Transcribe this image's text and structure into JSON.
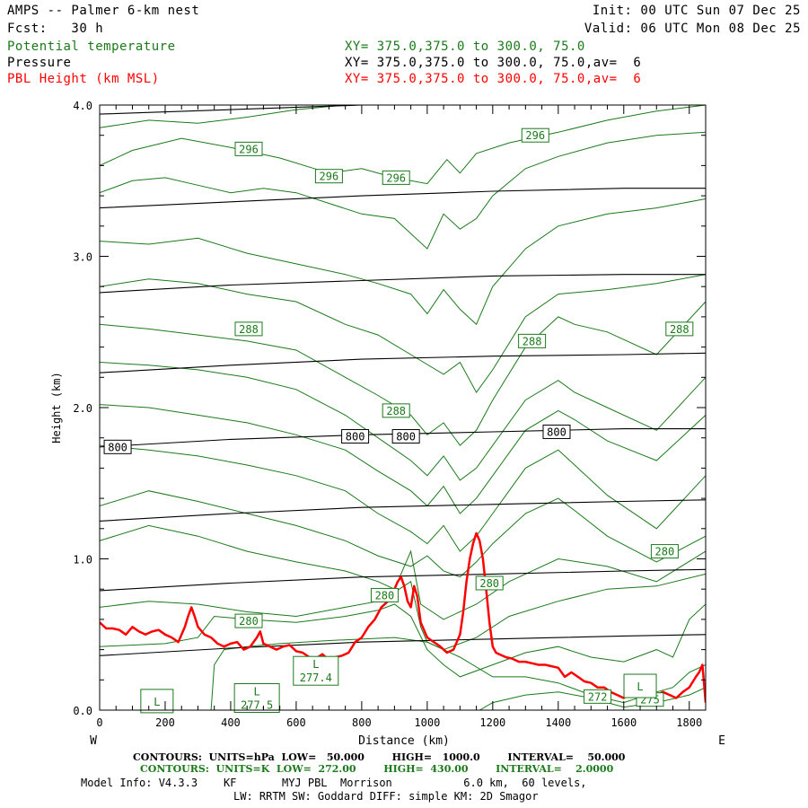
{
  "header": {
    "title": "AMPS -- Palmer 6-km nest",
    "fcst": "Fcst:   30 h",
    "init": "Init: 00 UTC Sun 07 Dec 25",
    "valid": "Valid: 06 UTC Mon 08 Dec 25",
    "fields": [
      {
        "name": "Potential temperature",
        "xy": "XY= 375.0,375.0 to 300.0, 75.0",
        "color": "#1a7a1a"
      },
      {
        "name": "Pressure",
        "xy": "XY= 375.0,375.0 to 300.0, 75.0,av=  6",
        "color": "#000000"
      },
      {
        "name": "PBL Height (km MSL)",
        "xy": "XY= 375.0,375.0 to 300.0, 75.0,av=  6",
        "color": "#ff0000"
      }
    ]
  },
  "axis_labels": {
    "west": "W",
    "east": "E"
  },
  "footer": {
    "pressure_line": "CONTOURS:  UNITS=hPa  LOW=   50.000        HIGH=   1000.0        INTERVAL=    50.000",
    "theta_line": "CONTOURS:  UNITS=K  LOW=  272.00        HIGH=  430.00        INTERVAL=    2.0000",
    "model_line1": "Model Info: V4.3.3    KF       MYJ PBL  Morrison           6.0 km,  60 levels,",
    "model_line2": "LW: RRTM SW: Goddard DIFF: simple KM: 2D Smagor"
  },
  "chart_data": {
    "type": "line",
    "xlabel": "Distance (km)",
    "ylabel": "Height (km)",
    "xlim": [
      0,
      1850
    ],
    "ylim": [
      0,
      4
    ],
    "x_ticks": [
      0,
      200,
      400,
      600,
      800,
      1000,
      1200,
      1400,
      1600,
      1800
    ],
    "y_ticks": [
      0.0,
      1.0,
      2.0,
      3.0,
      4.0
    ],
    "x_tick_labels": [
      "0",
      "200",
      "400",
      "600",
      "800",
      "1000",
      "1200",
      "1400",
      "1600",
      "1800"
    ],
    "y_tick_labels": [
      "0.0",
      "1.0",
      "2.0",
      "3.0",
      "4.0"
    ],
    "colors": {
      "pressure": "#000000",
      "theta": "#1a7a1a",
      "pbl": "#ff0000"
    },
    "pressure_contours": [
      {
        "x": [
          0,
          400,
          800,
          1200,
          1600,
          1850
        ],
        "y": [
          0.36,
          0.41,
          0.45,
          0.47,
          0.49,
          0.5
        ]
      },
      {
        "x": [
          0,
          400,
          800,
          1200,
          1600,
          1850
        ],
        "y": [
          0.79,
          0.84,
          0.88,
          0.9,
          0.92,
          0.93
        ]
      },
      {
        "x": [
          0,
          400,
          800,
          1200,
          1600,
          1850
        ],
        "y": [
          1.25,
          1.3,
          1.34,
          1.36,
          1.38,
          1.39
        ]
      },
      {
        "x": [
          0,
          400,
          800,
          1200,
          1600,
          1850
        ],
        "y": [
          1.74,
          1.79,
          1.82,
          1.84,
          1.86,
          1.86
        ]
      },
      {
        "x": [
          0,
          400,
          800,
          1200,
          1600,
          1850
        ],
        "y": [
          2.23,
          2.28,
          2.32,
          2.34,
          2.35,
          2.36
        ]
      },
      {
        "x": [
          0,
          400,
          800,
          1200,
          1600,
          1850
        ],
        "y": [
          2.76,
          2.81,
          2.84,
          2.87,
          2.88,
          2.88
        ]
      },
      {
        "x": [
          0,
          400,
          800,
          1200,
          1600,
          1850
        ],
        "y": [
          3.32,
          3.36,
          3.4,
          3.43,
          3.45,
          3.45
        ]
      },
      {
        "x": [
          0,
          400,
          800,
          1200,
          1600,
          1850
        ],
        "y": [
          3.94,
          3.97,
          4.0,
          4.02,
          4.03,
          4.03
        ]
      }
    ],
    "pressure_labels": [
      {
        "text": "800",
        "x": 55,
        "y": 1.74
      },
      {
        "text": "800",
        "x": 780,
        "y": 1.81
      },
      {
        "text": "800",
        "x": 935,
        "y": 1.81
      },
      {
        "text": "800",
        "x": 1395,
        "y": 1.84
      }
    ],
    "theta_contours": [
      {
        "x": [
          0,
          150,
          300,
          450,
          600,
          750,
          850,
          950,
          1050,
          1150,
          1250,
          1400,
          1550,
          1700,
          1850
        ],
        "y": [
          3.85,
          3.9,
          3.88,
          3.92,
          3.97,
          4.0,
          4.0,
          4.0,
          4.0,
          4.0,
          4.0,
          4.0,
          4.0,
          4.0,
          4.0
        ]
      },
      {
        "x": [
          0,
          100,
          250,
          400,
          550,
          700,
          800,
          900,
          1000,
          1060,
          1100,
          1150,
          1250,
          1400,
          1550,
          1700,
          1850
        ],
        "y": [
          3.6,
          3.7,
          3.78,
          3.72,
          3.65,
          3.55,
          3.58,
          3.52,
          3.48,
          3.64,
          3.55,
          3.68,
          3.75,
          3.82,
          3.9,
          3.96,
          4.0
        ]
      },
      {
        "x": [
          0,
          100,
          200,
          300,
          400,
          500,
          600,
          700,
          800,
          900,
          1000,
          1050,
          1100,
          1150,
          1200,
          1300,
          1400,
          1550,
          1700,
          1850
        ],
        "y": [
          3.42,
          3.5,
          3.52,
          3.47,
          3.42,
          3.45,
          3.42,
          3.35,
          3.28,
          3.25,
          3.05,
          3.28,
          3.18,
          3.25,
          3.4,
          3.58,
          3.66,
          3.75,
          3.8,
          3.82
        ]
      },
      {
        "x": [
          0,
          150,
          300,
          450,
          600,
          750,
          850,
          950,
          1000,
          1050,
          1100,
          1150,
          1200,
          1300,
          1400,
          1550,
          1700,
          1850
        ],
        "y": [
          3.1,
          3.08,
          3.12,
          3.02,
          2.95,
          2.88,
          2.82,
          2.75,
          2.62,
          2.78,
          2.65,
          2.55,
          2.8,
          3.05,
          3.2,
          3.28,
          3.32,
          3.38
        ]
      },
      {
        "x": [
          0,
          150,
          300,
          450,
          600,
          750,
          850,
          950,
          1050,
          1100,
          1150,
          1200,
          1300,
          1400,
          1550,
          1700,
          1850
        ],
        "y": [
          2.8,
          2.85,
          2.82,
          2.75,
          2.7,
          2.55,
          2.48,
          2.35,
          2.22,
          2.3,
          2.1,
          2.25,
          2.6,
          2.75,
          2.78,
          2.82,
          2.88
        ]
      },
      {
        "x": [
          0,
          150,
          300,
          450,
          600,
          750,
          850,
          950,
          1000,
          1050,
          1100,
          1150,
          1200,
          1300,
          1400,
          1450,
          1550,
          1700,
          1850
        ],
        "y": [
          2.55,
          2.52,
          2.48,
          2.44,
          2.38,
          2.2,
          2.08,
          1.95,
          1.82,
          1.9,
          1.75,
          1.85,
          2.05,
          2.4,
          2.6,
          2.55,
          2.5,
          2.35,
          2.7
        ]
      },
      {
        "x": [
          0,
          150,
          300,
          450,
          600,
          750,
          850,
          950,
          1000,
          1050,
          1100,
          1150,
          1200,
          1300,
          1400,
          1450,
          1550,
          1700,
          1850
        ],
        "y": [
          2.3,
          2.28,
          2.25,
          2.2,
          2.12,
          1.95,
          1.8,
          1.65,
          1.55,
          1.68,
          1.52,
          1.6,
          1.75,
          2.05,
          2.18,
          2.1,
          2.0,
          1.85,
          2.2
        ]
      },
      {
        "x": [
          0,
          150,
          300,
          450,
          600,
          750,
          850,
          950,
          1000,
          1050,
          1100,
          1150,
          1200,
          1300,
          1400,
          1450,
          1550,
          1700,
          1850
        ],
        "y": [
          2.02,
          2.0,
          1.95,
          1.9,
          1.82,
          1.72,
          1.58,
          1.45,
          1.35,
          1.48,
          1.3,
          1.4,
          1.55,
          1.85,
          1.98,
          1.92,
          1.78,
          1.65,
          1.95
        ]
      },
      {
        "x": [
          0,
          150,
          300,
          450,
          600,
          750,
          850,
          950,
          1000,
          1050,
          1100,
          1150,
          1200,
          1300,
          1400,
          1450,
          1550,
          1700,
          1850
        ],
        "y": [
          1.75,
          1.72,
          1.68,
          1.62,
          1.55,
          1.45,
          1.3,
          1.18,
          1.1,
          1.22,
          1.05,
          1.15,
          1.3,
          1.6,
          1.72,
          1.62,
          1.42,
          1.2,
          1.55
        ]
      },
      {
        "x": [
          0,
          150,
          300,
          450,
          600,
          750,
          850,
          950,
          1000,
          1050,
          1100,
          1150,
          1200,
          1300,
          1400,
          1450,
          1550,
          1700,
          1850
        ],
        "y": [
          1.35,
          1.45,
          1.38,
          1.3,
          1.22,
          1.12,
          1.02,
          0.95,
          1.02,
          0.92,
          0.88,
          0.98,
          1.1,
          1.3,
          1.4,
          1.32,
          1.15,
          0.98,
          1.15
        ]
      },
      {
        "x": [
          0,
          150,
          300,
          450,
          600,
          750,
          850,
          900,
          950,
          980,
          1050,
          1150,
          1250,
          1400,
          1550,
          1700,
          1850
        ],
        "y": [
          1.12,
          1.22,
          1.15,
          1.05,
          0.98,
          0.92,
          0.85,
          0.8,
          1.05,
          0.7,
          0.6,
          0.7,
          0.85,
          1.0,
          0.95,
          0.85,
          1.05
        ]
      },
      {
        "x": [
          0,
          150,
          300,
          450,
          600,
          750,
          850,
          900,
          950,
          980,
          1000,
          1050,
          1150,
          1250,
          1400,
          1550,
          1700,
          1850
        ],
        "y": [
          0.68,
          0.72,
          0.7,
          0.65,
          0.62,
          0.68,
          0.72,
          0.78,
          0.85,
          0.55,
          0.45,
          0.4,
          0.48,
          0.62,
          0.72,
          0.8,
          0.82,
          0.9
        ]
      },
      {
        "x": [
          0,
          200,
          300,
          350,
          450,
          600,
          750,
          850,
          900,
          950,
          1000,
          1050,
          1100,
          1200,
          1300,
          1400,
          1500,
          1600,
          1700,
          1750,
          1800,
          1850
        ],
        "y": [
          0.42,
          0.44,
          0.48,
          0.62,
          0.6,
          0.58,
          0.62,
          0.66,
          0.7,
          0.62,
          0.4,
          0.3,
          0.22,
          0.3,
          0.38,
          0.42,
          0.35,
          0.32,
          0.4,
          0.35,
          0.6,
          0.7
        ]
      },
      {
        "x": [
          340,
          350,
          380,
          450,
          550,
          700,
          900,
          1000,
          1050,
          1100,
          1200,
          1300,
          1400,
          1500,
          1600,
          1700,
          1750,
          1800,
          1850
        ],
        "y": [
          0.0,
          0.3,
          0.4,
          0.42,
          0.44,
          0.46,
          0.48,
          0.45,
          0.4,
          0.35,
          0.22,
          0.22,
          0.18,
          0.1,
          0.05,
          0.12,
          0.15,
          0.25,
          0.3
        ]
      },
      {
        "x": [
          1160,
          1200,
          1300,
          1400,
          1500,
          1550,
          1600,
          1700,
          1800,
          1850
        ],
        "y": [
          0.0,
          0.05,
          0.1,
          0.12,
          0.08,
          0.05,
          0.02,
          0.05,
          0.1,
          0.15
        ]
      }
    ],
    "theta_labels": [
      {
        "text": "296",
        "x": 455,
        "y": 3.71
      },
      {
        "text": "296",
        "x": 700,
        "y": 3.53
      },
      {
        "text": "296",
        "x": 905,
        "y": 3.52
      },
      {
        "text": "296",
        "x": 1330,
        "y": 3.8
      },
      {
        "text": "288",
        "x": 455,
        "y": 2.52
      },
      {
        "text": "288",
        "x": 1320,
        "y": 2.44
      },
      {
        "text": "288",
        "x": 1770,
        "y": 2.52
      },
      {
        "text": "288",
        "x": 905,
        "y": 1.98
      },
      {
        "text": "280",
        "x": 455,
        "y": 0.59
      },
      {
        "text": "280",
        "x": 870,
        "y": 0.76
      },
      {
        "text": "280",
        "x": 1190,
        "y": 0.84
      },
      {
        "text": "280",
        "x": 1725,
        "y": 1.05
      },
      {
        "text": "272",
        "x": 1520,
        "y": 0.09
      },
      {
        "text": "275",
        "x": 1680,
        "y": 0.07
      }
    ],
    "low_markers": [
      {
        "label": "L",
        "value": "",
        "x": 175,
        "y": 0.06
      },
      {
        "label": "L",
        "value": "277.5",
        "x": 480,
        "y": 0.08
      },
      {
        "label": "L",
        "value": "277.4",
        "x": 660,
        "y": 0.26
      },
      {
        "label": "L",
        "value": "",
        "x": 1650,
        "y": 0.16
      }
    ],
    "pbl_height": {
      "x": [
        0,
        20,
        40,
        60,
        80,
        100,
        120,
        140,
        160,
        180,
        200,
        220,
        240,
        260,
        270,
        280,
        290,
        300,
        320,
        340,
        360,
        380,
        400,
        420,
        440,
        460,
        480,
        490,
        500,
        520,
        540,
        560,
        580,
        600,
        620,
        640,
        660,
        680,
        700,
        720,
        740,
        760,
        780,
        800,
        820,
        840,
        860,
        880,
        900,
        910,
        920,
        930,
        940,
        950,
        960,
        970,
        980,
        1000,
        1020,
        1040,
        1060,
        1080,
        1100,
        1110,
        1120,
        1130,
        1140,
        1150,
        1160,
        1170,
        1180,
        1190,
        1200,
        1210,
        1220,
        1240,
        1260,
        1280,
        1300,
        1320,
        1340,
        1360,
        1380,
        1400,
        1420,
        1440,
        1460,
        1480,
        1500,
        1520,
        1540,
        1560,
        1580,
        1600,
        1620,
        1640,
        1660,
        1680,
        1700,
        1720,
        1740,
        1760,
        1780,
        1800,
        1820,
        1830,
        1840,
        1850
      ],
      "y": [
        0.58,
        0.54,
        0.54,
        0.53,
        0.5,
        0.55,
        0.52,
        0.5,
        0.52,
        0.53,
        0.5,
        0.48,
        0.45,
        0.55,
        0.62,
        0.68,
        0.62,
        0.55,
        0.5,
        0.48,
        0.44,
        0.42,
        0.44,
        0.45,
        0.4,
        0.42,
        0.48,
        0.52,
        0.44,
        0.42,
        0.4,
        0.42,
        0.43,
        0.39,
        0.38,
        0.35,
        0.34,
        0.37,
        0.33,
        0.35,
        0.36,
        0.38,
        0.45,
        0.48,
        0.55,
        0.6,
        0.68,
        0.72,
        0.8,
        0.85,
        0.88,
        0.82,
        0.72,
        0.68,
        0.82,
        0.75,
        0.58,
        0.48,
        0.45,
        0.42,
        0.38,
        0.4,
        0.5,
        0.65,
        0.85,
        1.0,
        1.1,
        1.17,
        1.12,
        1.0,
        0.8,
        0.58,
        0.42,
        0.38,
        0.37,
        0.35,
        0.34,
        0.32,
        0.32,
        0.31,
        0.3,
        0.3,
        0.29,
        0.28,
        0.22,
        0.25,
        0.22,
        0.19,
        0.18,
        0.15,
        0.15,
        0.12,
        0.1,
        0.08,
        0.12,
        0.1,
        0.08,
        0.12,
        0.1,
        0.12,
        0.1,
        0.08,
        0.12,
        0.15,
        0.22,
        0.25,
        0.3,
        0.05
      ]
    }
  }
}
